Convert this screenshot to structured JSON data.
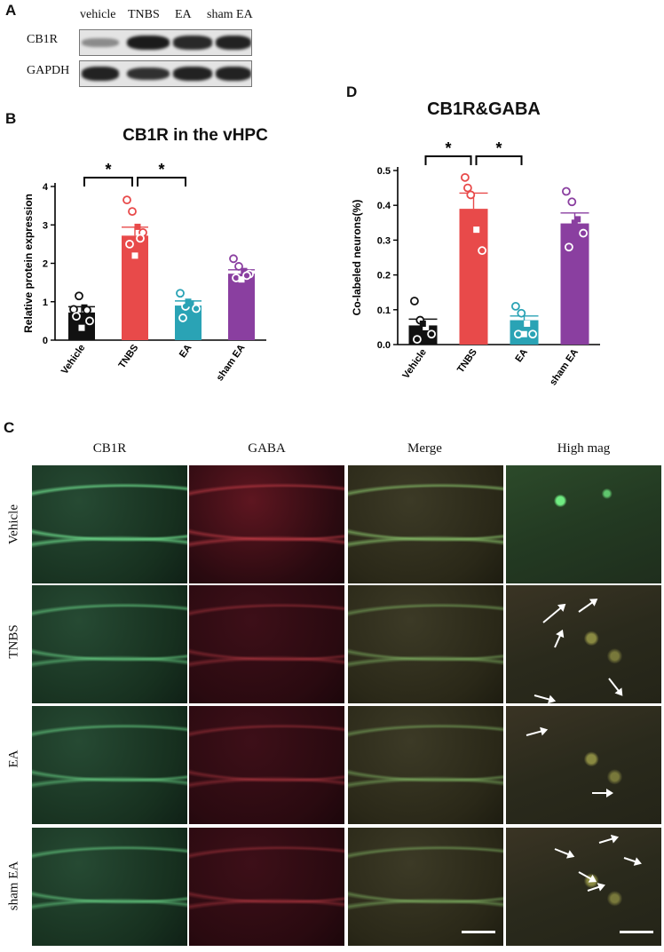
{
  "panels": {
    "A": "A",
    "B": "B",
    "C": "C",
    "D": "D"
  },
  "western": {
    "lane_labels": [
      "vehicle",
      "TNBS",
      "EA",
      "sham EA"
    ],
    "row_labels": [
      "CB1R",
      "GAPDH"
    ],
    "cb1r_intensity": [
      0.25,
      1.0,
      0.9,
      0.95
    ],
    "gapdh_intensity": [
      0.95,
      0.85,
      0.95,
      0.95
    ]
  },
  "chart_data": [
    {
      "type": "bar",
      "title": "CB1R in the vHPC",
      "ylabel": "Relative protein expression",
      "xlabel": "",
      "categories": [
        "Vehicle",
        "TNBS",
        "EA",
        "sham EA"
      ],
      "values": [
        0.72,
        2.72,
        0.9,
        1.73
      ],
      "errors": [
        0.15,
        0.22,
        0.12,
        0.1
      ],
      "ylim": [
        0,
        4
      ],
      "yticks": [
        0,
        1,
        2,
        3,
        4
      ],
      "colors": [
        "#111111",
        "#e84a4a",
        "#2aa3b5",
        "#8a3fa0"
      ],
      "points": [
        [
          0.8,
          1.15,
          0.85,
          0.5,
          0.62,
          0.32,
          0.78
        ],
        [
          3.65,
          3.35,
          2.95,
          2.8,
          2.5,
          2.2,
          2.65
        ],
        [
          1.22,
          0.88,
          0.95,
          0.82,
          0.58,
          1.0
        ],
        [
          2.12,
          1.92,
          1.8,
          1.72,
          1.62,
          1.58,
          1.68
        ]
      ],
      "significance": [
        {
          "from": "Vehicle",
          "to": "TNBS",
          "label": "*"
        },
        {
          "from": "TNBS",
          "to": "EA",
          "label": "*"
        }
      ]
    },
    {
      "type": "bar",
      "title": "CB1R&GABA",
      "ylabel": "Co-labeled neurons(%)",
      "xlabel": "",
      "categories": [
        "Vehicle",
        "TNBS",
        "EA",
        "sham EA"
      ],
      "values": [
        0.055,
        0.39,
        0.07,
        0.348
      ],
      "errors": [
        0.018,
        0.045,
        0.012,
        0.03
      ],
      "ylim": [
        0,
        0.5
      ],
      "yticks": [
        0.0,
        0.1,
        0.2,
        0.3,
        0.4,
        0.5
      ],
      "ytick_labels": [
        "0.0",
        "0.1",
        "0.2",
        "0.3",
        "0.4",
        "0.5"
      ],
      "colors": [
        "#111111",
        "#e84a4a",
        "#2aa3b5",
        "#8a3fa0"
      ],
      "points": [
        [
          0.125,
          0.07,
          0.05,
          0.03,
          0.015,
          0.06
        ],
        [
          0.48,
          0.43,
          0.33,
          0.27,
          0.45
        ],
        [
          0.11,
          0.09,
          0.06,
          0.03,
          0.03,
          0.03
        ],
        [
          0.44,
          0.41,
          0.36,
          0.32,
          0.28,
          0.35
        ]
      ],
      "significance": [
        {
          "from": "Vehicle",
          "to": "TNBS",
          "label": "*"
        },
        {
          "from": "TNBS",
          "to": "EA",
          "label": "*"
        }
      ]
    }
  ],
  "micrographs": {
    "columns": [
      "CB1R",
      "GABA",
      "Merge",
      "High mag"
    ],
    "rows": [
      "Vehicle",
      "TNBS",
      "EA",
      "sham EA"
    ]
  }
}
